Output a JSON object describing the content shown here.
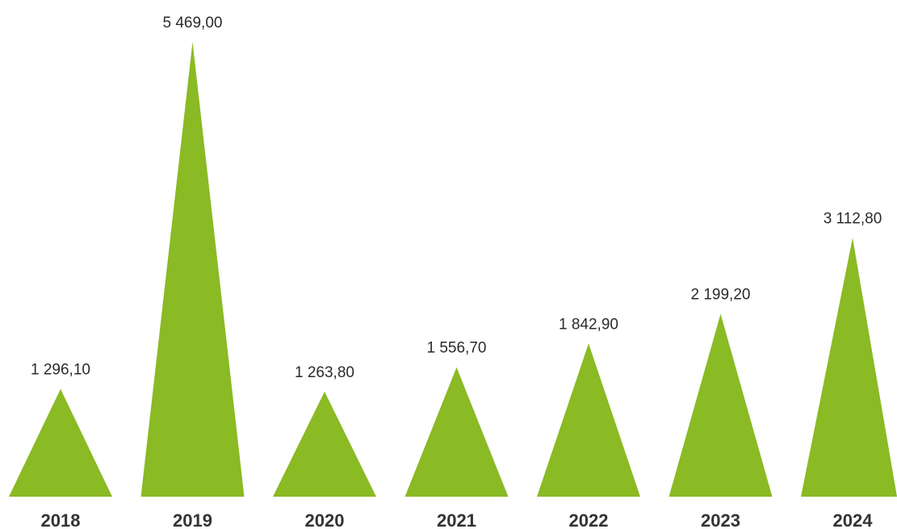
{
  "chart_data": {
    "type": "bar",
    "title": "",
    "categories": [
      "2018",
      "2019",
      "2020",
      "2021",
      "2022",
      "2023",
      "2024"
    ],
    "values": [
      1296.1,
      5469.0,
      1263.8,
      1556.7,
      1842.9,
      2199.2,
      3112.8
    ],
    "value_labels": [
      "1 296,10",
      "5 469,00",
      "1 263,80",
      "1 556,70",
      "1 842,90",
      "2 199,20",
      "3 112,80"
    ],
    "bar_shape": "triangle",
    "color": "#8aba24",
    "xlabel": "",
    "ylabel": "",
    "ylim": [
      0,
      5469
    ],
    "grid": false,
    "legend": "none"
  }
}
